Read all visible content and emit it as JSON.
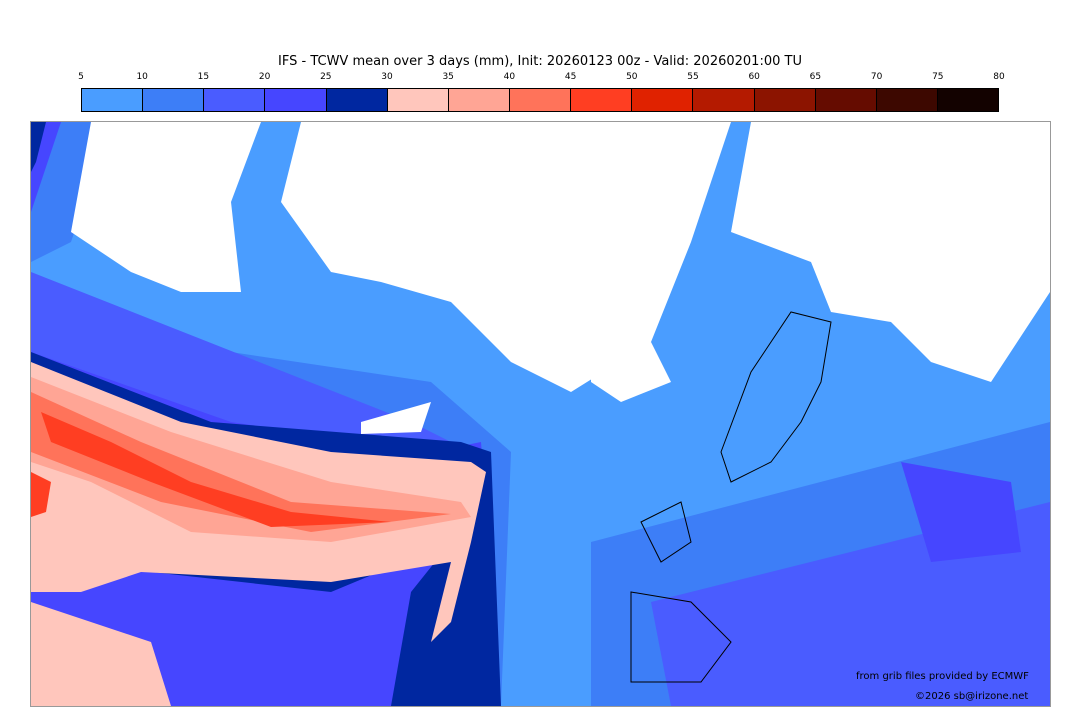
{
  "title": "IFS - TCWV mean over 3 days (mm), Init: 20260123 00z - Valid: 20260201:00 TU",
  "colorbar": {
    "ticks": [
      "5",
      "10",
      "15",
      "20",
      "25",
      "30",
      "35",
      "40",
      "45",
      "50",
      "55",
      "60",
      "65",
      "70",
      "75",
      "80"
    ],
    "colors": [
      "#4a9dff",
      "#3d7ef7",
      "#4a5cff",
      "#4646ff",
      "#0027a0",
      "#ffc6bc",
      "#ffa595",
      "#ff735a",
      "#ff3e22",
      "#e02200",
      "#b41a00",
      "#8c1400",
      "#650c00",
      "#3d0800",
      "#130200"
    ]
  },
  "credit": "from grib files provided by ECMWF",
  "copyright": "©2026 sb@irizone.net"
}
